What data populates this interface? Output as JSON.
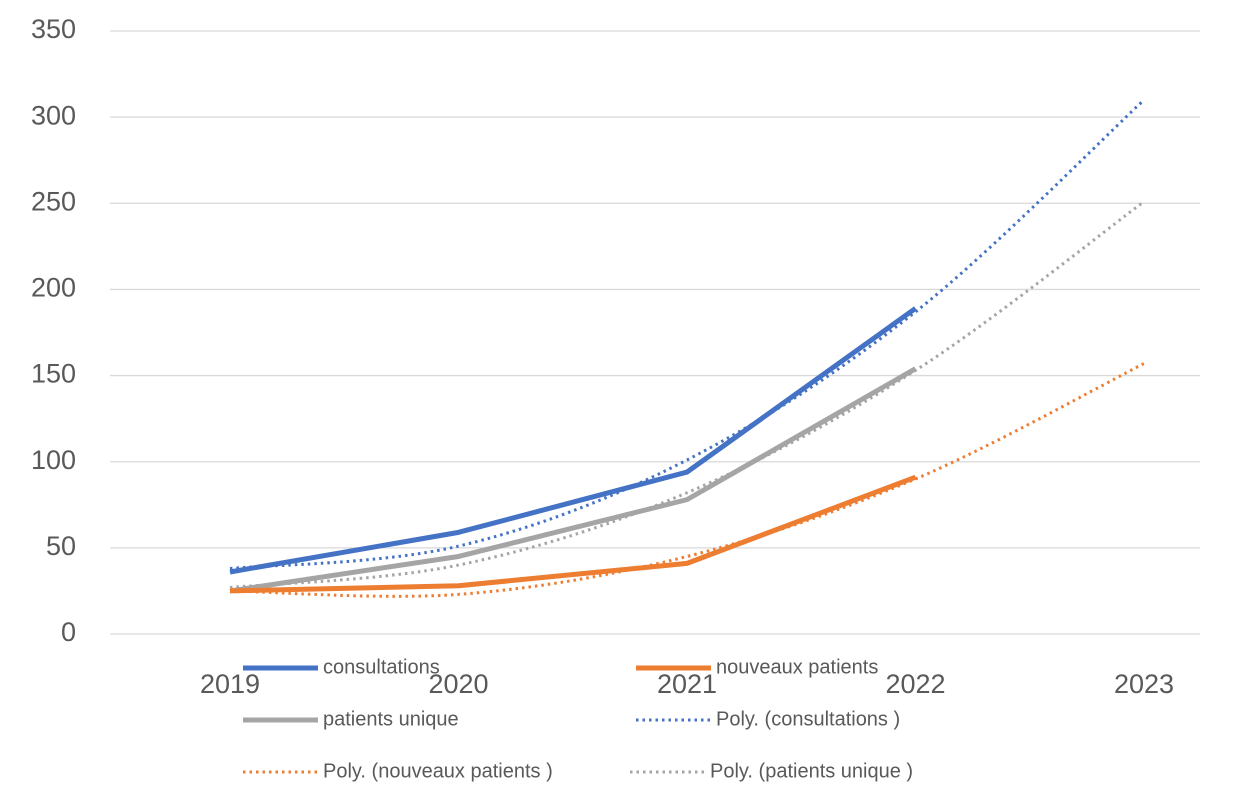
{
  "chart_data": {
    "type": "line",
    "categories": [
      "2019",
      "2020",
      "2021",
      "2022",
      "2023"
    ],
    "series": [
      {
        "name": "consultations",
        "color": "#4472c4",
        "style": "solid",
        "values": [
          36,
          59,
          94,
          189,
          null
        ]
      },
      {
        "name": "nouveaux patients",
        "color": "#ed7d31",
        "style": "solid",
        "values": [
          25,
          28,
          41,
          91,
          null
        ]
      },
      {
        "name": "patients unique",
        "color": "#a5a5a5",
        "style": "solid",
        "values": [
          25,
          45,
          78,
          154,
          null
        ]
      },
      {
        "name": "Poly. (consultations )",
        "color": "#4472c4",
        "style": "dotted",
        "values": [
          38,
          51,
          101,
          187,
          310
        ]
      },
      {
        "name": "Poly. (nouveaux patients )",
        "color": "#ed7d31",
        "style": "dotted",
        "values": [
          25,
          23,
          45,
          90,
          157
        ]
      },
      {
        "name": "Poly. (patients unique )",
        "color": "#a5a5a5",
        "style": "dotted",
        "values": [
          27,
          40,
          82,
          153,
          251
        ]
      }
    ],
    "ylim": [
      0,
      350
    ],
    "yticks": [
      0,
      50,
      100,
      150,
      200,
      250,
      300,
      350
    ],
    "grid": true,
    "legend": "bottom"
  }
}
